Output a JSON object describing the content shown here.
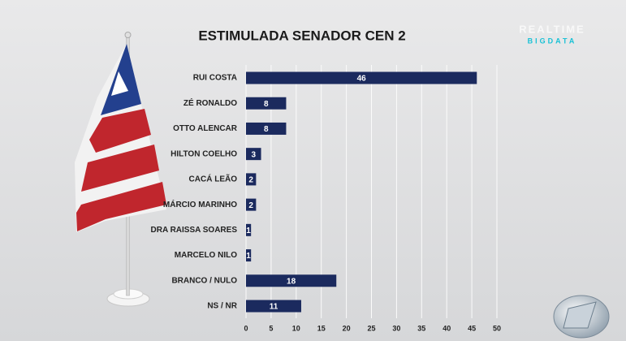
{
  "brand": {
    "top": "REALTIME",
    "bottom": "BIGDATA"
  },
  "chart_data": {
    "type": "bar",
    "orientation": "horizontal",
    "title": "ESTIMULADA SENADOR CEN 2",
    "categories": [
      "RUI COSTA",
      "ZÉ RONALDO",
      "OTTO ALENCAR",
      "HILTON COELHO",
      "CACÁ LEÃO",
      "MÁRCIO MARINHO",
      "DRA RAISSA SOARES",
      "MARCELO NILO",
      "BRANCO / NULO",
      "NS / NR"
    ],
    "values": [
      46,
      8,
      8,
      3,
      2,
      2,
      1,
      1,
      18,
      11
    ],
    "color": "#1b2a5e",
    "xlim": [
      0,
      50
    ],
    "xticks": [
      0,
      5,
      10,
      15,
      20,
      25,
      30,
      35,
      40,
      45,
      50
    ],
    "grid": true
  }
}
